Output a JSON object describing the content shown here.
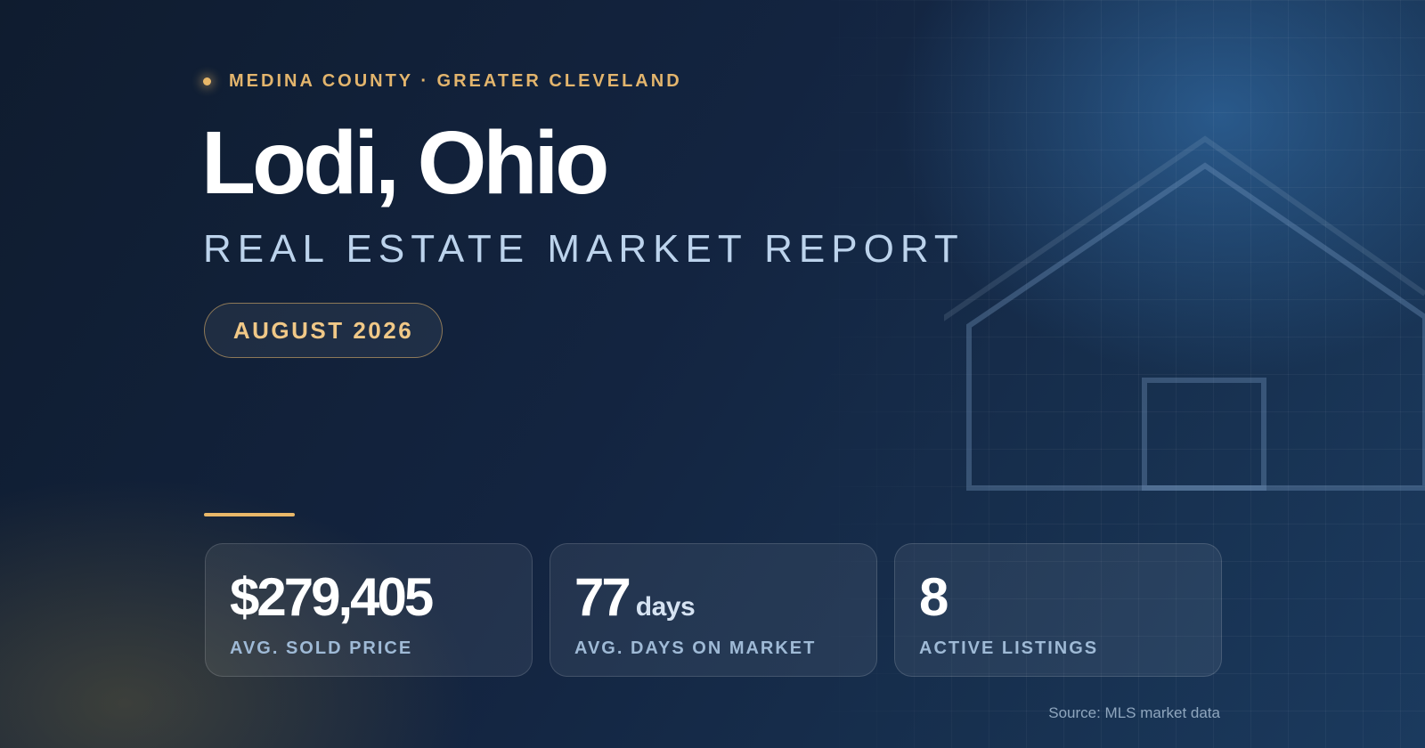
{
  "header": {
    "eyebrow": "MEDINA COUNTY · GREATER CLEVELAND",
    "city": "Lodi, Ohio",
    "subtitle": "REAL ESTATE MARKET REPORT",
    "period": "AUGUST 2026"
  },
  "stats": [
    {
      "value": "$279,405",
      "unit": "",
      "label": "AVG. SOLD PRICE"
    },
    {
      "value": "77",
      "unit": "days",
      "label": "AVG. DAYS ON MARKET"
    },
    {
      "value": "8",
      "unit": "",
      "label": "ACTIVE LISTINGS"
    }
  ],
  "footer": {
    "source": "Source: MLS market data"
  },
  "colors": {
    "accent_gold": "#e9b869",
    "background_navy": "#132440",
    "subtitle_blue": "#bcd3ec"
  },
  "icons": [
    "house-outline-icon",
    "eyebrow-dot-icon"
  ]
}
